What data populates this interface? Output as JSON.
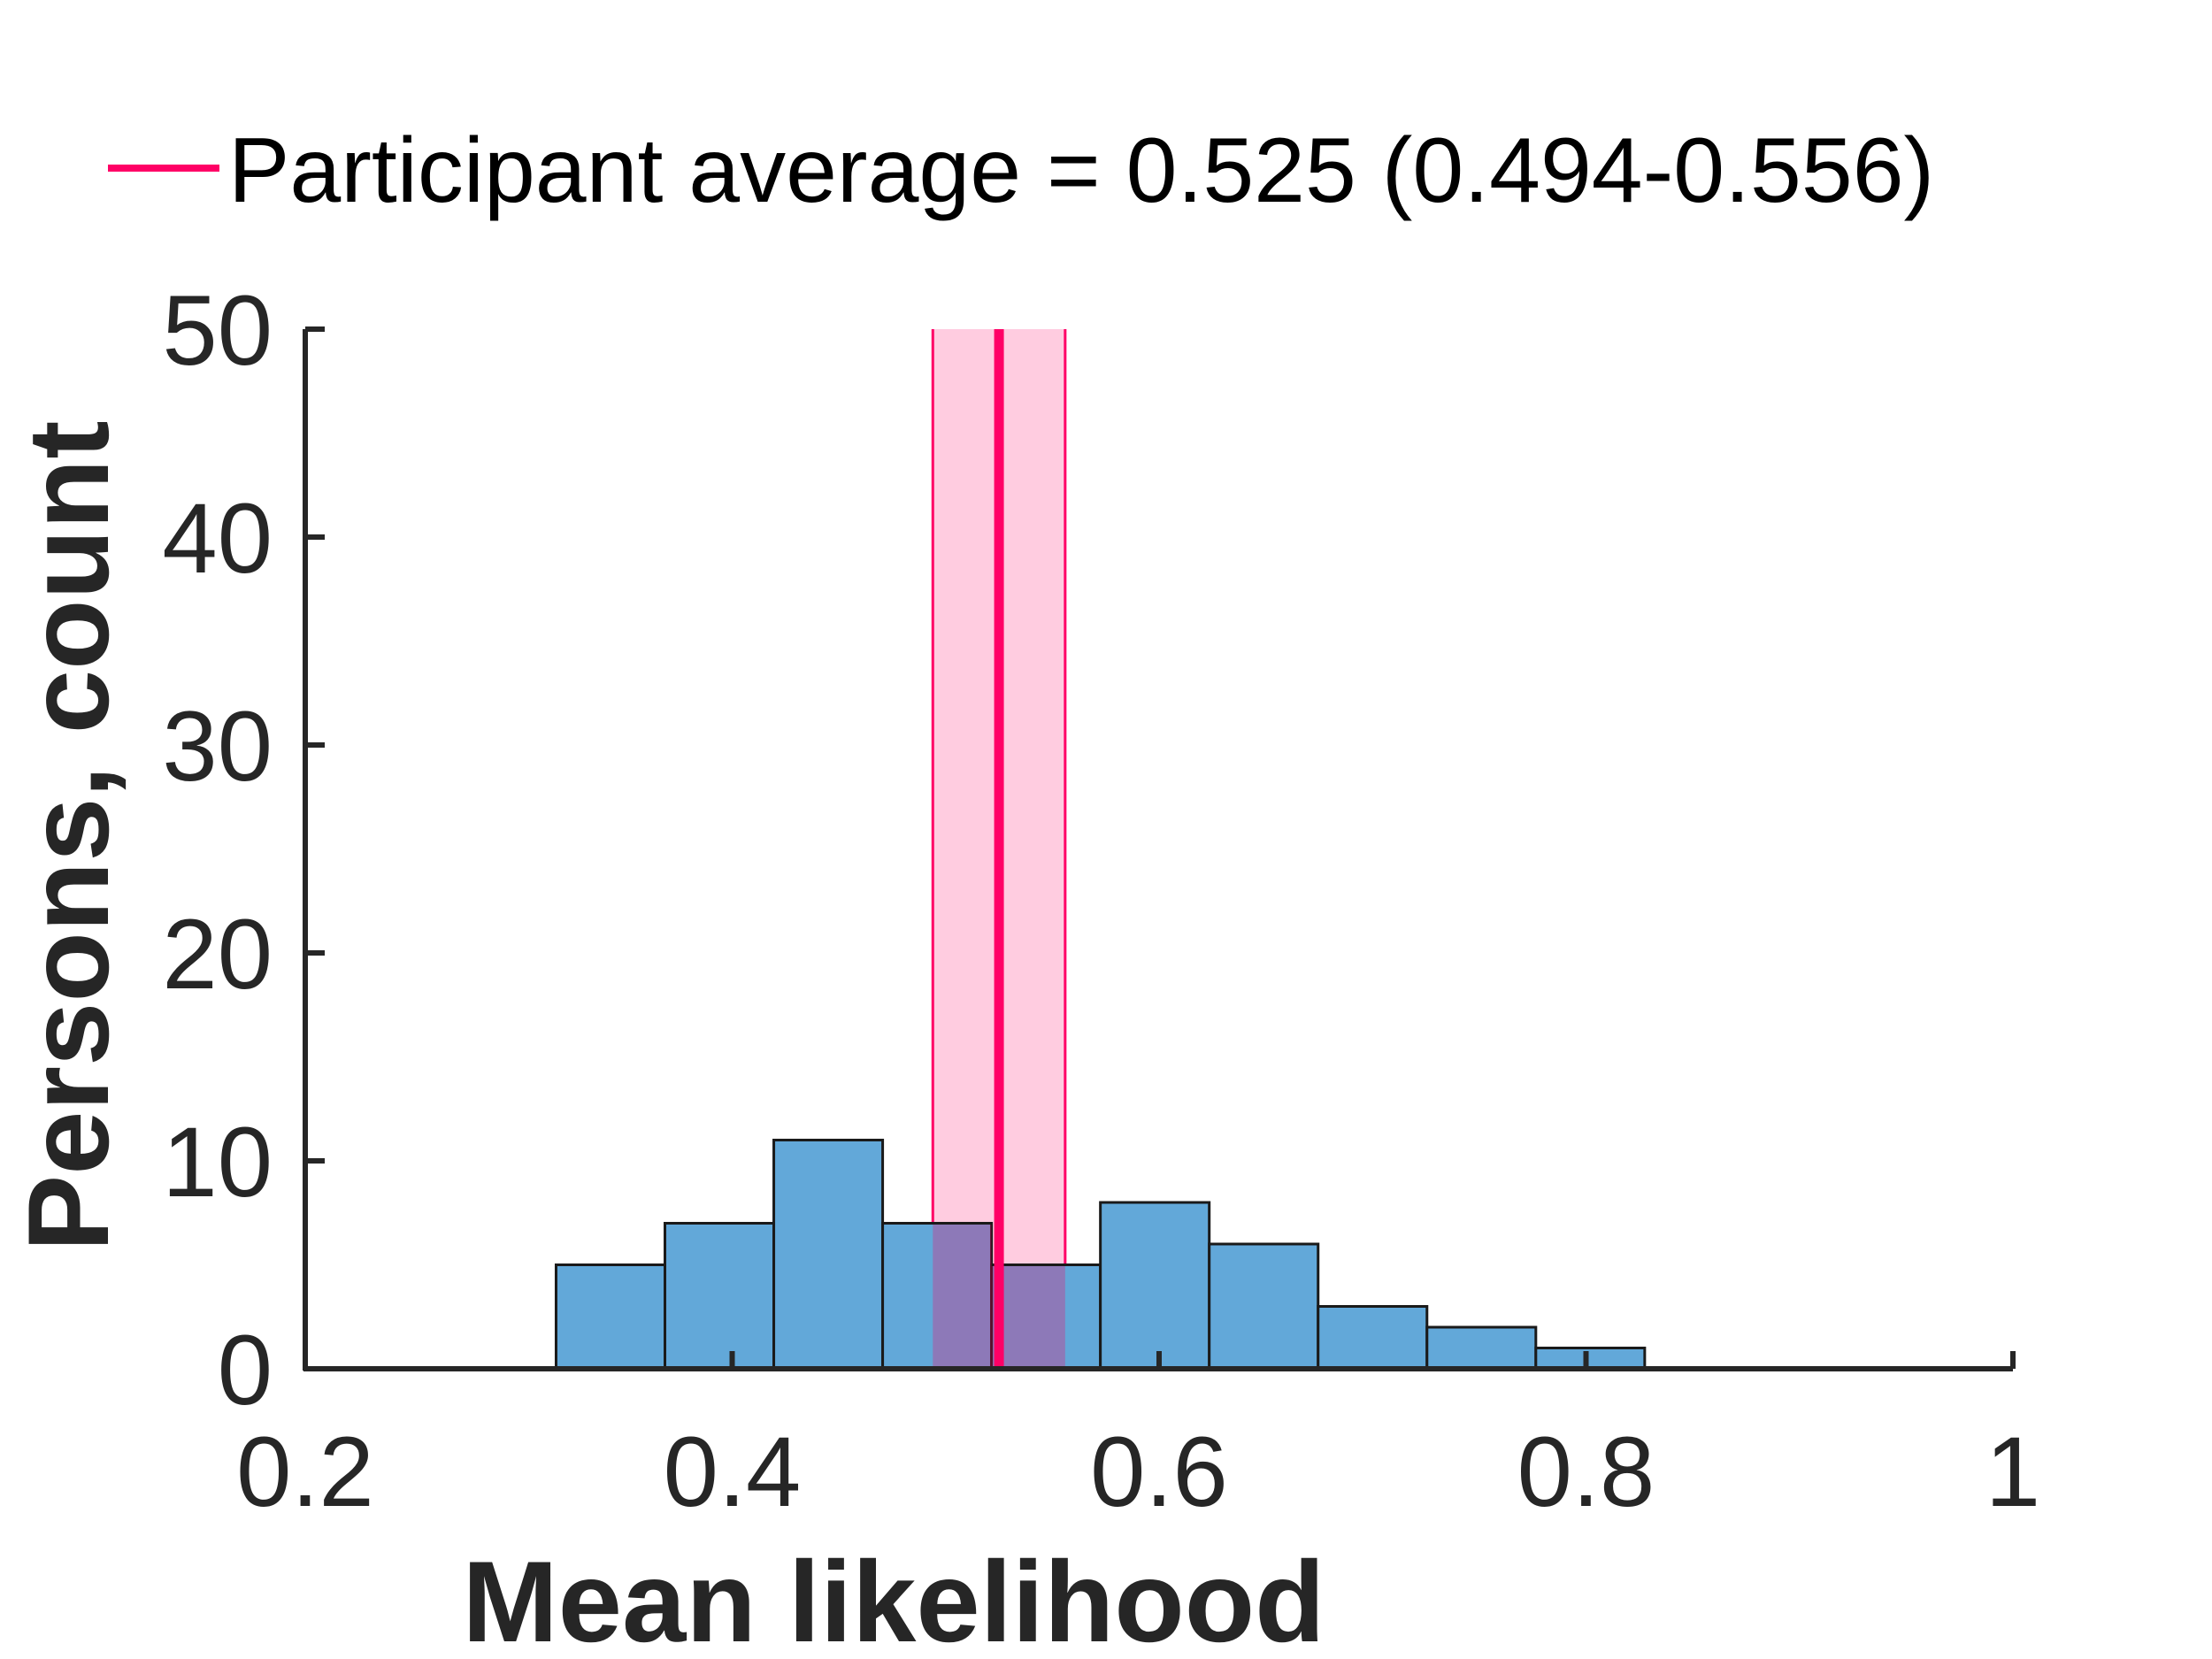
{
  "chart_data": {
    "type": "bar",
    "title": "",
    "xlabel": "Mean likelihood",
    "ylabel": "Persons, count",
    "xlim": [
      0.2,
      1
    ],
    "ylim": [
      0,
      50
    ],
    "xticks": [
      "0.2",
      "0.4",
      "0.6",
      "0.8",
      "1"
    ],
    "yticks": [
      "0",
      "10",
      "20",
      "30",
      "40",
      "50"
    ],
    "grid": false,
    "legend_placement": "top",
    "bins": [
      {
        "start": 0.3175,
        "end": 0.3685,
        "count": 5
      },
      {
        "start": 0.3685,
        "end": 0.4195,
        "count": 7
      },
      {
        "start": 0.4195,
        "end": 0.4705,
        "count": 11
      },
      {
        "start": 0.4705,
        "end": 0.5215,
        "count": 7
      },
      {
        "start": 0.5215,
        "end": 0.5725,
        "count": 5
      },
      {
        "start": 0.5725,
        "end": 0.6235,
        "count": 8
      },
      {
        "start": 0.6235,
        "end": 0.6745,
        "count": 6
      },
      {
        "start": 0.6745,
        "end": 0.7255,
        "count": 3
      },
      {
        "start": 0.7255,
        "end": 0.7765,
        "count": 2
      },
      {
        "start": 0.7765,
        "end": 0.8275,
        "count": 1
      }
    ],
    "mean_line": {
      "value": 0.525,
      "ci_low": 0.494,
      "ci_high": 0.556,
      "legend_label": "Participant average = 0.525 (0.494-0.556)"
    },
    "colors": {
      "bar_fill": "#62a8d9",
      "bar_edge": "#1a1a1a",
      "mean_line": "#ff0066",
      "ci_fill": "#ff0066",
      "axis": "#262626"
    }
  }
}
